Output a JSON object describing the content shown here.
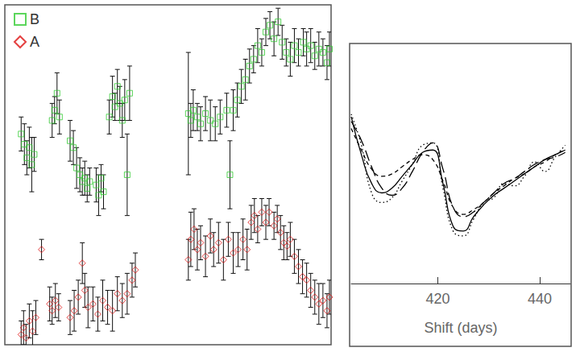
{
  "chart_data": [
    {
      "type": "scatter",
      "tick_labels": false,
      "legend": "upper left",
      "xlim": [
        0,
        400
      ],
      "ylim": [
        0,
        10
      ],
      "series": [
        {
          "name": "B",
          "color": "#33cc33",
          "marker": "square",
          "x": [
            20,
            24,
            27,
            30,
            33,
            36,
            58,
            61,
            64,
            67,
            80,
            84,
            88,
            92,
            95,
            98,
            101,
            104,
            112,
            115,
            118,
            121,
            128,
            132,
            135,
            138,
            141,
            144,
            147,
            150,
            153,
            225,
            228,
            231,
            236,
            240,
            246,
            252,
            258,
            264,
            272,
            276,
            280,
            285,
            290,
            295,
            300,
            305,
            310,
            315,
            320,
            325,
            330,
            335,
            340,
            345,
            350,
            355,
            360,
            366,
            370,
            375,
            380,
            385,
            390,
            395,
            398
          ],
          "values": [
            6.2,
            5.9,
            5.5,
            5.8,
            5.3,
            5.6,
            6.6,
            6.9,
            7.4,
            6.7,
            6.0,
            5.8,
            5.2,
            5.0,
            4.8,
            4.9,
            4.6,
            4.8,
            4.7,
            4.4,
            4.9,
            4.5,
            6.7,
            7.3,
            7.0,
            7.6,
            7.1,
            6.6,
            7.2,
            5.0,
            7.4,
            6.8,
            6.6,
            6.9,
            6.7,
            6.5,
            6.8,
            6.6,
            6.5,
            6.7,
            6.9,
            5.0,
            6.9,
            7.2,
            7.6,
            7.8,
            8.2,
            8.4,
            8.8,
            8.6,
            9.2,
            9.4,
            9.0,
            9.5,
            8.9,
            8.6,
            8.4,
            8.8,
            8.6,
            8.9,
            8.7,
            8.8,
            8.5,
            8.7,
            8.6,
            8.3,
            8.7
          ],
          "errors": [
            0.5,
            0.6,
            0.5,
            0.6,
            0.8,
            0.5,
            0.5,
            0.4,
            0.6,
            0.5,
            0.6,
            0.5,
            0.6,
            0.5,
            0.4,
            0.5,
            0.4,
            0.4,
            0.5,
            0.6,
            0.4,
            0.5,
            0.5,
            0.6,
            0.4,
            0.5,
            0.5,
            0.5,
            0.6,
            1.2,
            0.8,
            1.8,
            0.5,
            0.6,
            0.4,
            0.5,
            0.5,
            0.6,
            0.5,
            0.5,
            0.5,
            1.0,
            0.6,
            0.5,
            0.5,
            0.6,
            0.5,
            0.4,
            0.5,
            0.4,
            0.4,
            0.4,
            0.5,
            0.4,
            0.5,
            0.4,
            0.5,
            0.5,
            0.4,
            0.4,
            0.5,
            0.5,
            0.4,
            0.5,
            0.4,
            0.5,
            0.5
          ]
        },
        {
          "name": "A",
          "color": "#dd1111",
          "marker": "diamond",
          "x": [
            20,
            23,
            26,
            30,
            34,
            38,
            45,
            55,
            58,
            62,
            66,
            80,
            85,
            90,
            95,
            98,
            102,
            108,
            114,
            120,
            126,
            132,
            138,
            144,
            150,
            156,
            160,
            225,
            228,
            232,
            236,
            240,
            246,
            252,
            256,
            262,
            268,
            274,
            280,
            286,
            292,
            297,
            302,
            306,
            310,
            315,
            320,
            324,
            330,
            334,
            338,
            342,
            346,
            350,
            355,
            360,
            365,
            370,
            375,
            380,
            385,
            390,
            395,
            398
          ],
          "values": [
            0.3,
            0.5,
            0.2,
            0.7,
            0.4,
            0.8,
            2.8,
            1.2,
            1.0,
            1.3,
            1.1,
            0.8,
            1.0,
            1.4,
            2.4,
            1.6,
            1.1,
            1.2,
            0.9,
            1.3,
            1.1,
            1.0,
            1.5,
            1.3,
            1.5,
            1.9,
            2.2,
            2.5,
            3.1,
            3.4,
            2.8,
            3.0,
            2.6,
            3.2,
            2.8,
            3.0,
            2.5,
            3.1,
            2.7,
            2.8,
            3.1,
            2.8,
            3.6,
            3.8,
            3.4,
            3.9,
            3.6,
            3.9,
            3.5,
            3.7,
            3.3,
            3.0,
            2.9,
            3.1,
            2.6,
            2.3,
            2.0,
            1.9,
            1.6,
            1.4,
            1.2,
            1.3,
            1.0,
            1.4
          ],
          "errors": [
            0.4,
            0.5,
            0.4,
            0.5,
            0.6,
            0.5,
            0.3,
            0.5,
            0.4,
            0.5,
            0.4,
            0.5,
            0.6,
            0.5,
            0.6,
            0.5,
            0.6,
            0.5,
            0.5,
            0.6,
            0.5,
            0.6,
            0.5,
            0.5,
            0.6,
            0.5,
            0.5,
            0.6,
            0.8,
            0.6,
            0.6,
            0.5,
            0.6,
            0.5,
            0.5,
            0.6,
            0.6,
            0.5,
            0.6,
            0.5,
            0.6,
            0.6,
            0.5,
            0.5,
            0.4,
            0.4,
            0.5,
            0.4,
            0.4,
            0.4,
            0.5,
            0.5,
            0.4,
            0.5,
            0.5,
            0.5,
            0.5,
            0.5,
            0.5,
            0.5,
            0.6,
            0.5,
            0.5,
            0.5
          ]
        }
      ]
    },
    {
      "type": "line",
      "xlabel": "Shift (days)",
      "tick_labels": "x",
      "xlim": [
        403,
        446
      ],
      "ylim": [
        0,
        10
      ],
      "xticks": [
        420,
        440
      ],
      "x": [
        403,
        405,
        407,
        409,
        411,
        413,
        415,
        417,
        419,
        421,
        423,
        425,
        427,
        429,
        431,
        433,
        435,
        437,
        439,
        441,
        443,
        445
      ],
      "series": [
        {
          "color": "#000000",
          "line_style": "solid",
          "values": [
            7.0,
            5.4,
            4.2,
            3.8,
            4.0,
            4.5,
            5.0,
            5.5,
            5.6,
            4.2,
            2.4,
            2.2,
            2.8,
            3.3,
            3.7,
            4.0,
            4.3,
            4.6,
            4.9,
            5.2,
            5.4,
            5.6
          ]
        },
        {
          "color": "#000000",
          "line_style": "dashed",
          "values": [
            6.5,
            5.6,
            4.8,
            4.5,
            4.6,
            4.9,
            5.2,
            5.4,
            5.2,
            4.3,
            3.2,
            2.9,
            3.1,
            3.4,
            3.8,
            4.1,
            4.4,
            4.6,
            4.9,
            5.1,
            5.4,
            5.6
          ]
        },
        {
          "color": "#000000",
          "line_style": "long-dashed",
          "values": [
            6.8,
            6.0,
            4.9,
            4.0,
            3.7,
            4.0,
            4.7,
            5.5,
            5.9,
            4.8,
            3.2,
            2.8,
            3.0,
            3.4,
            3.8,
            4.2,
            4.4,
            4.7,
            5.0,
            5.2,
            5.3,
            5.5
          ]
        },
        {
          "color": "#000000",
          "line_style": "dotted",
          "values": [
            7.1,
            5.8,
            3.8,
            3.4,
            3.6,
            4.3,
            5.0,
            5.8,
            5.9,
            4.0,
            2.2,
            2.0,
            2.7,
            3.4,
            3.6,
            4.2,
            4.1,
            4.5,
            5.1,
            4.7,
            5.3,
            5.8
          ]
        }
      ]
    }
  ]
}
